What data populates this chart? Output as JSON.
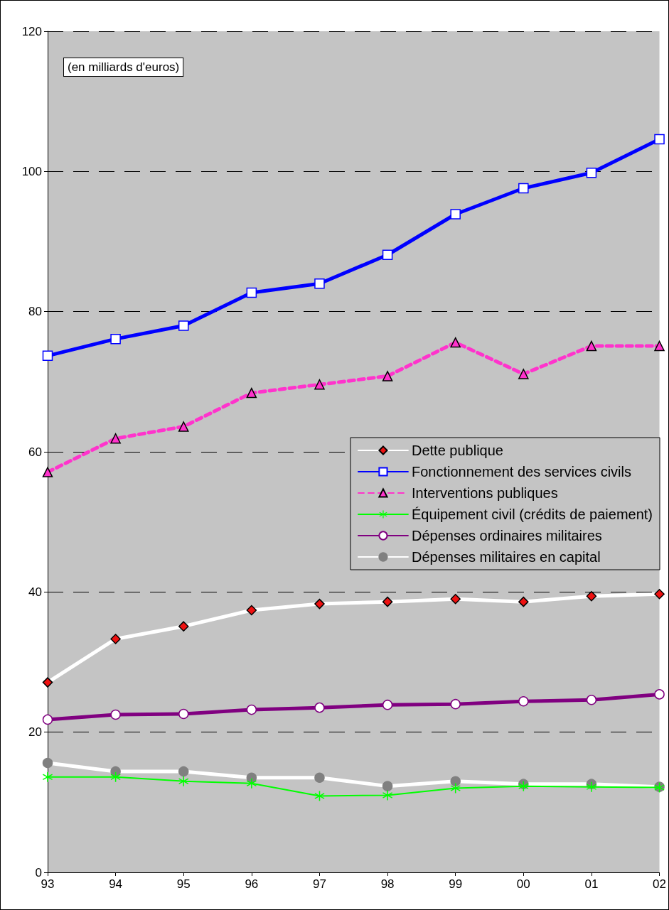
{
  "chart_data": {
    "type": "line",
    "categories": [
      "93",
      "94",
      "95",
      "96",
      "97",
      "98",
      "99",
      "00",
      "01",
      "02"
    ],
    "series": [
      {
        "name": "Dette publique",
        "color": "#ffffff",
        "marker": "diamond",
        "line_style": "solid",
        "values": [
          27.1,
          33.3,
          35.1,
          37.4,
          38.3,
          38.6,
          39.0,
          38.6,
          39.4,
          39.7
        ]
      },
      {
        "name": "Fonctionnement des services civils",
        "color": "#0000ff",
        "marker": "square",
        "line_style": "solid",
        "values": [
          73.7,
          76.1,
          78.0,
          82.7,
          84.0,
          88.1,
          93.9,
          97.6,
          99.8,
          104.6
        ]
      },
      {
        "name": "Interventions publiques",
        "color": "#ff33cc",
        "marker": "triangle",
        "line_style": "dashed",
        "values": [
          57.1,
          61.9,
          63.6,
          68.4,
          69.6,
          70.8,
          75.6,
          71.1,
          75.1,
          75.1
        ]
      },
      {
        "name": "Équipement civil (crédits de paiement)",
        "color": "#00ff00",
        "marker": "cross",
        "line_style": "solid",
        "values": [
          13.6,
          13.6,
          13.0,
          12.7,
          10.9,
          11.0,
          12.0,
          12.3,
          12.2,
          12.1
        ]
      },
      {
        "name": "Dépenses ordinaires militaires",
        "color": "#800080",
        "marker": "circle",
        "line_style": "solid",
        "values": [
          21.8,
          22.5,
          22.6,
          23.2,
          23.5,
          23.9,
          24.0,
          24.4,
          24.6,
          25.4
        ]
      },
      {
        "name": "Dépenses militaires en capital",
        "color": "#ffffff",
        "marker": "circle",
        "line_style": "solid",
        "values": [
          15.6,
          14.4,
          14.4,
          13.5,
          13.5,
          12.3,
          13.0,
          12.6,
          12.6,
          12.2
        ]
      }
    ],
    "ylim": [
      0,
      120
    ],
    "yticks": [
      0,
      20,
      40,
      60,
      80,
      100,
      120
    ],
    "grid": "y",
    "legend": "right",
    "annotations": [
      "(en milliards d'euros)"
    ]
  }
}
